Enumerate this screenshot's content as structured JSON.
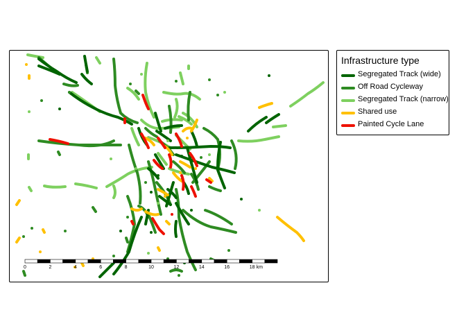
{
  "legend": {
    "title": "Infrastructure type",
    "items": [
      {
        "label": "Segregated Track (wide)",
        "color": "#006400"
      },
      {
        "label": "Off Road Cycleway",
        "color": "#2e8b22"
      },
      {
        "label": "Segregated Track (narrow)",
        "color": "#7ed05f"
      },
      {
        "label": "Shared use",
        "color": "#ffc000"
      },
      {
        "label": "Painted Cycle Lane",
        "color": "#ee1100"
      }
    ]
  },
  "scalebar": {
    "ticks": [
      "0",
      "2",
      "4",
      "6",
      "8",
      "10",
      "12",
      "14",
      "16",
      "18"
    ],
    "unit": "km"
  }
}
